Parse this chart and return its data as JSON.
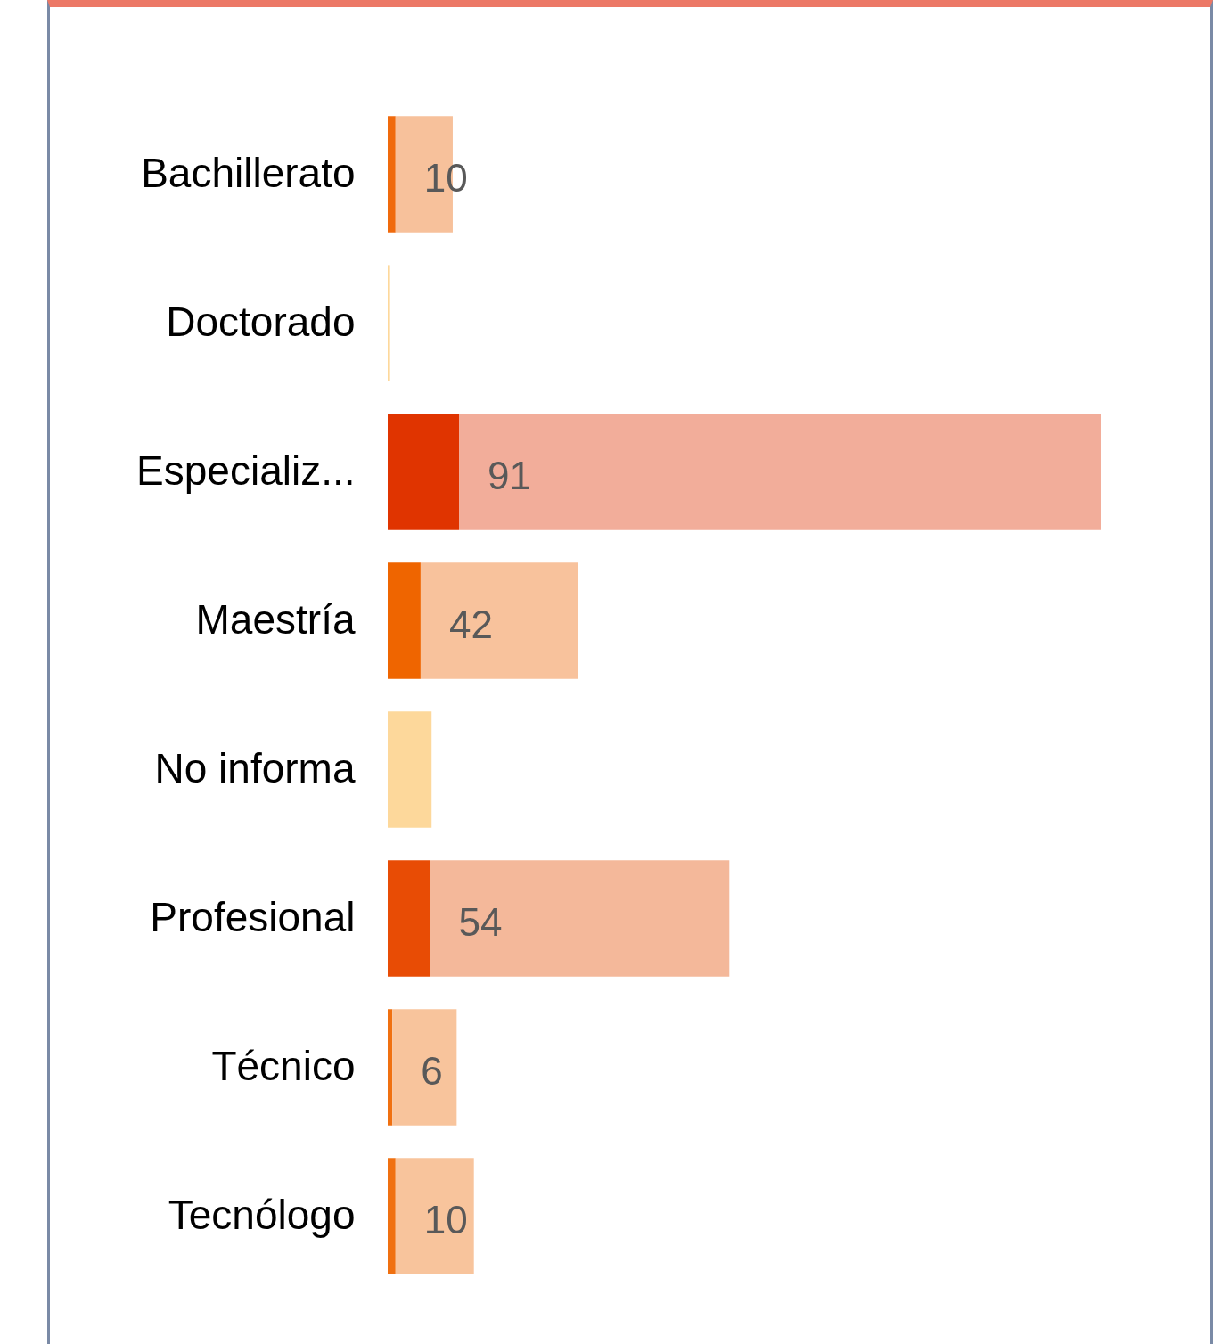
{
  "chart_data": {
    "type": "bar",
    "orientation": "horizontal",
    "stacked": true,
    "categories": [
      "Bachillerato",
      "Doctorado",
      "Especializ...",
      "Maestría",
      "No informa",
      "Profesional",
      "Técnico",
      "Tecnólogo"
    ],
    "series": [
      {
        "colors": [
          "#f06a0c",
          "#f06a0c",
          "#e03400",
          "#ef6500",
          "#f06a0c",
          "#e84c05",
          "#f07010",
          "#f07010"
        ],
        "values": [
          10,
          0,
          91,
          42,
          0,
          54,
          6,
          10
        ],
        "value_labels": [
          "10",
          null,
          "91",
          "42",
          null,
          "54",
          "6",
          "10"
        ]
      },
      {
        "colors": [
          "#f7c19b",
          "#fdd89b",
          "#f2ad9a",
          "#f8c29c",
          "#fdd89b",
          "#f4b89a",
          "#f8c49c",
          "#f8c49c"
        ],
        "values": [
          73,
          3,
          819,
          201,
          56,
          382,
          82,
          100
        ]
      }
    ]
  }
}
